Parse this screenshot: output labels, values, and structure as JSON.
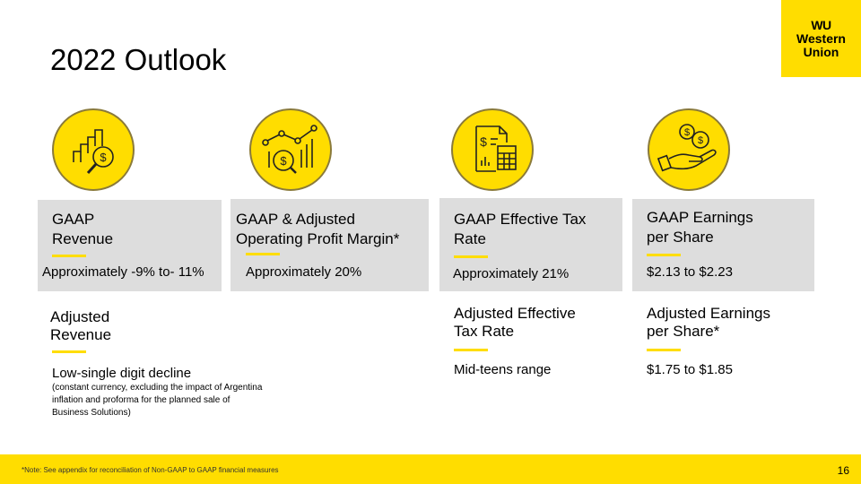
{
  "title": "2022 Outlook",
  "logo": {
    "mark": "WU",
    "line1": "Western",
    "line2": "Union",
    "color": "#FFDD00"
  },
  "colors": {
    "accent": "#FFDD00",
    "card_bg": "#DDDDDD"
  },
  "metrics": [
    {
      "icon": "revenue-chart-magnifier-icon",
      "heading_line1": "GAAP",
      "heading_line2": "Revenue",
      "value": "Approximately -9% to- 11%"
    },
    {
      "icon": "profit-trend-icon",
      "heading_line1": "GAAP & Adjusted",
      "heading_line2": "Operating Profit Margin*",
      "value": "Approximately 20%"
    },
    {
      "icon": "tax-document-calculator-icon",
      "heading_line1": "GAAP Effective Tax",
      "heading_line2": "Rate",
      "value": "Approximately 21%"
    },
    {
      "icon": "hand-coins-icon",
      "heading_line1": "GAAP Earnings",
      "heading_line2": "per Share",
      "value": "$2.13 to $2.23"
    }
  ],
  "adjusted": [
    {
      "heading_line1": "Adjusted",
      "heading_line2": "Revenue",
      "value": "Low-single digit decline",
      "note": "(constant currency, excluding the impact of Argentina inflation and proforma for the planned sale of Business Solutions)"
    },
    {
      "heading_line1": "Adjusted Effective",
      "heading_line2": "Tax Rate",
      "value": "Mid-teens range"
    },
    {
      "heading_line1": "Adjusted Earnings",
      "heading_line2": "per Share*",
      "value": "$1.75 to $1.85"
    }
  ],
  "footer": {
    "note": "*Note: See appendix for reconciliation of Non-GAAP to GAAP financial measures",
    "page": "16"
  }
}
